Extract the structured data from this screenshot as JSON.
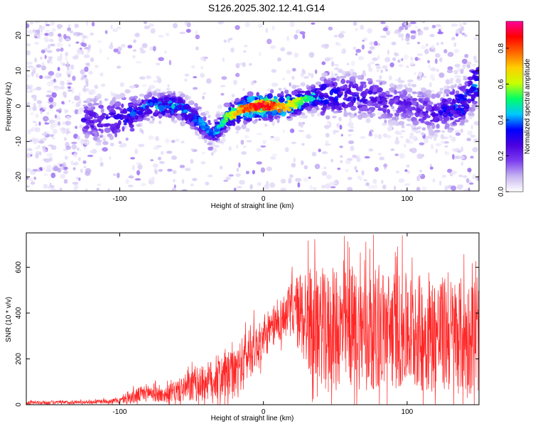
{
  "title": "S126.2025.302.12.41.G14",
  "chart_data": [
    {
      "type": "heatmap",
      "title": "S126.2025.302.12.41.G14",
      "xlabel": "Height of straight line (km)",
      "ylabel": "Frequency (Hz)",
      "xlim": [
        -165,
        150
      ],
      "ylim": [
        -24,
        24
      ],
      "xticks": [
        -100,
        0,
        100
      ],
      "yticks": [
        -20,
        -10,
        0,
        10,
        20
      ],
      "colorbar": {
        "label": "Normalized spectral amplitude",
        "range": [
          0.0,
          0.95
        ],
        "ticks": [
          "0.0",
          "0.2",
          "0.4",
          "0.6",
          "0.8"
        ],
        "colors": [
          "#ffffff",
          "#c6b4f0",
          "#7a3cf0",
          "#4b00e0",
          "#0000ff",
          "#00c8ff",
          "#00ff66",
          "#c8ff00",
          "#ffd000",
          "#ff6600",
          "#ff0000",
          "#ff0099"
        ]
      },
      "ridge": {
        "x": [
          -120,
          -100,
          -80,
          -60,
          -45,
          -35,
          -25,
          -15,
          -5,
          5,
          15,
          30,
          45,
          60,
          80,
          100,
          120,
          140,
          148
        ],
        "frequency": [
          -4,
          -4,
          0,
          0,
          -4,
          -8,
          -3,
          -1,
          0,
          0,
          0,
          2,
          3,
          3,
          2,
          0,
          -2,
          1,
          7
        ],
        "amplitude": [
          0.3,
          0.35,
          0.45,
          0.5,
          0.45,
          0.4,
          0.6,
          0.85,
          0.95,
          0.9,
          0.75,
          0.55,
          0.4,
          0.35,
          0.3,
          0.25,
          0.3,
          0.45,
          0.5
        ]
      }
    },
    {
      "type": "line",
      "xlabel": "Height of straight line (km)",
      "ylabel": "SNR (10 * v/v)",
      "xlim": [
        -165,
        150
      ],
      "ylim": [
        0,
        750
      ],
      "xticks": [
        -100,
        0,
        100
      ],
      "yticks": [
        0,
        200,
        400,
        600
      ],
      "series": [
        {
          "name": "SNR",
          "color": "#ff0000",
          "x": [
            -165,
            -140,
            -120,
            -100,
            -90,
            -80,
            -70,
            -60,
            -50,
            -40,
            -30,
            -20,
            -10,
            0,
            10,
            20,
            30,
            40,
            60,
            80,
            100,
            120,
            140,
            150
          ],
          "mean": [
            8,
            10,
            12,
            18,
            35,
            55,
            40,
            60,
            80,
            100,
            120,
            130,
            230,
            280,
            360,
            420,
            380,
            330,
            330,
            330,
            320,
            310,
            300,
            290
          ],
          "amp": [
            10,
            10,
            10,
            15,
            40,
            50,
            40,
            60,
            90,
            100,
            130,
            130,
            150,
            100,
            110,
            150,
            300,
            300,
            330,
            330,
            320,
            320,
            320,
            300
          ]
        }
      ]
    }
  ]
}
